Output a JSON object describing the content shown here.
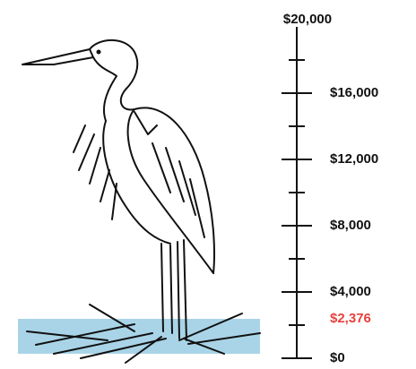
{
  "chart_data": {
    "type": "gauge",
    "value": 2376,
    "value_label": "$2,376",
    "value_color": "#e8413c",
    "fill_color": "#a9d4e8",
    "ylim": [
      0,
      20000
    ],
    "yticks": [
      {
        "value": 0,
        "label": "$0"
      },
      {
        "value": 4000,
        "label": "$4,000"
      },
      {
        "value": 8000,
        "label": "$8,000"
      },
      {
        "value": 12000,
        "label": "$12,000"
      },
      {
        "value": 16000,
        "label": "$16,000"
      },
      {
        "value": 20000,
        "label": "$20,000"
      }
    ],
    "minor_yticks": [
      2000,
      6000,
      10000,
      14000,
      18000
    ]
  }
}
